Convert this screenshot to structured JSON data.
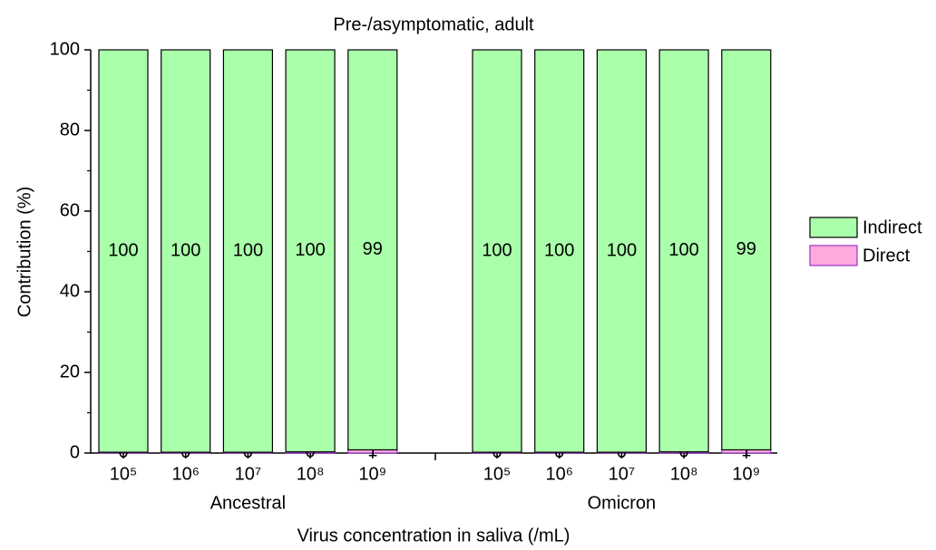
{
  "chart_data": {
    "type": "stacked_bar",
    "title": "Pre-/asymptomatic, adult",
    "xlabel": "Virus concentration in saliva (/mL)",
    "ylabel": "Contribution (%)",
    "groups": [
      "Ancestral",
      "Omicron"
    ],
    "categories": [
      "10⁵",
      "10⁶",
      "10⁷",
      "10⁸",
      "10⁹",
      "10⁵",
      "10⁶",
      "10⁷",
      "10⁸",
      "10⁹"
    ],
    "series": [
      {
        "name": "Direct",
        "color": "#ffaadd",
        "edgecolor": "#9933cc",
        "values": [
          0.2,
          0.2,
          0.2,
          0.3,
          0.8,
          0.2,
          0.2,
          0.2,
          0.3,
          0.8
        ],
        "value_labels": [
          "0",
          "0",
          "0",
          "0",
          "1",
          "0",
          "0",
          "0",
          "0",
          "1"
        ]
      },
      {
        "name": "Indirect",
        "color": "#aaffaa",
        "edgecolor": "#000000",
        "values": [
          99.8,
          99.8,
          99.8,
          99.7,
          99.2,
          99.8,
          99.8,
          99.8,
          99.7,
          99.2
        ],
        "value_labels": [
          "100",
          "100",
          "100",
          "100",
          "99",
          "100",
          "100",
          "100",
          "100",
          "99"
        ]
      }
    ],
    "ylim": [
      0,
      100
    ],
    "yticks": [
      0,
      20,
      40,
      60,
      80,
      100
    ],
    "yminorticks": [
      10,
      30,
      50,
      70,
      90
    ],
    "legend": "right"
  }
}
